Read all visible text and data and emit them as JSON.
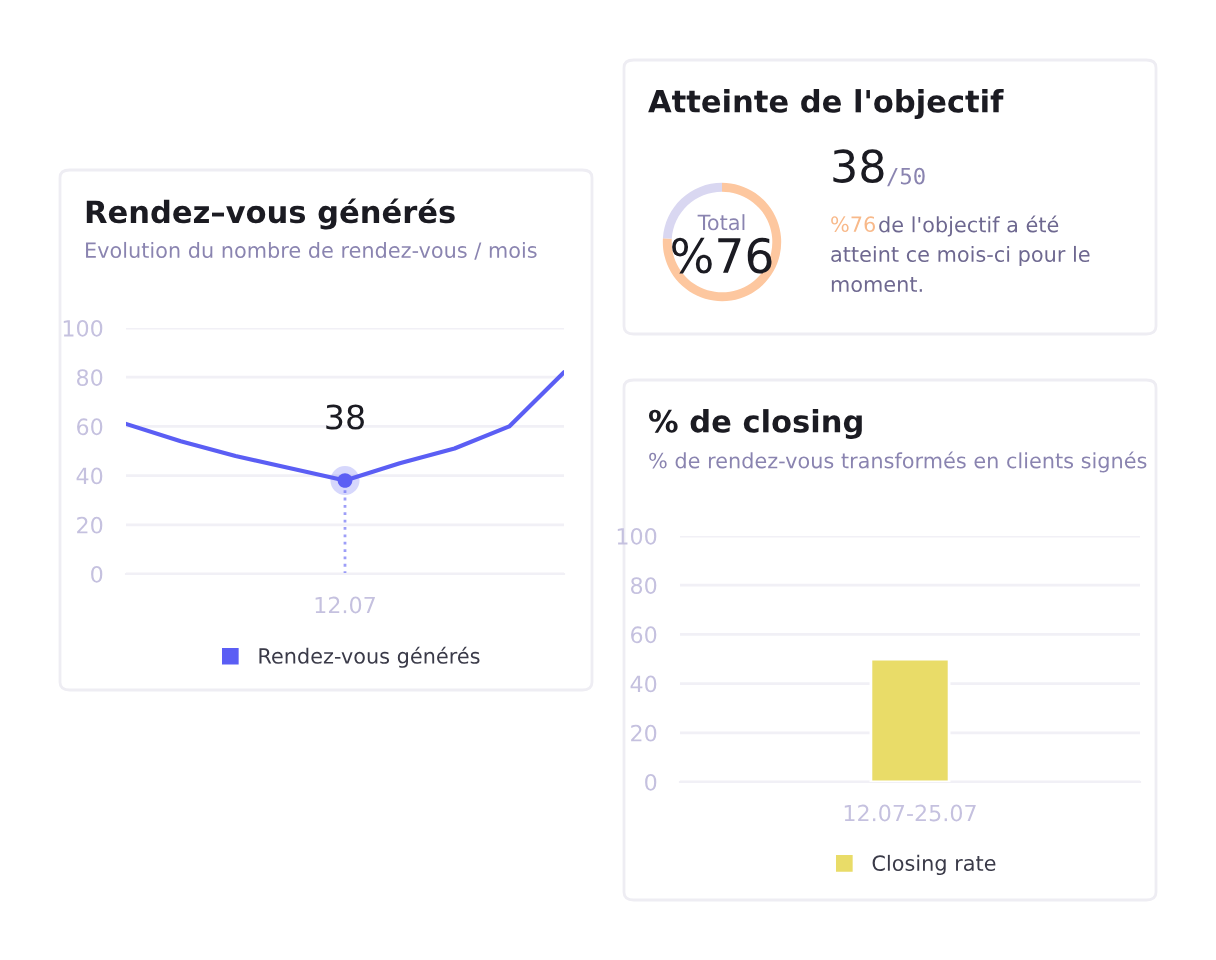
{
  "chart_data": [
    {
      "type": "line",
      "title": "Rendez–vous générés",
      "subtitle": "Evolution du nombre de rendez-vous / mois",
      "categories": [
        null,
        null,
        null,
        null,
        "12.07",
        null,
        null,
        null,
        null
      ],
      "series": [
        {
          "name": "Rendez-vous générés",
          "color": "#5b5ef4",
          "values": [
            61,
            54,
            48,
            43,
            38,
            45,
            51,
            60,
            82
          ]
        },
        {
          "type": "scatter",
          "color": "#5b5ef4",
          "x": [
            "12.07"
          ],
          "values": [
            38
          ],
          "value_labels": [
            "38"
          ]
        }
      ],
      "ylim": [
        0,
        100
      ],
      "yticks": [
        0,
        20,
        40,
        60,
        80,
        100
      ],
      "grid": "y",
      "legend": "bottom",
      "line_style": "solid"
    },
    {
      "type": "donut",
      "title": "Atteinte de l'objectif",
      "categories": [
        null,
        null
      ],
      "values": [
        76,
        24
      ],
      "colors": [
        "#fdc79f",
        "#d9d7f1"
      ],
      "annotations": [
        "Total",
        "%76",
        "38",
        "/50",
        "%76",
        "de l'objectif a été",
        "atteint ce mois-ci pour le",
        "moment."
      ]
    },
    {
      "type": "bar",
      "title": "% de closing",
      "subtitle": "% de rendez-vous transformés en clients signés",
      "categories": [
        "12.07-25.07"
      ],
      "series": [
        {
          "name": "Closing rate",
          "color": "#e9dc68",
          "values": [
            50
          ]
        }
      ],
      "ylim": [
        0,
        100
      ],
      "yticks": [
        0,
        20,
        40,
        60,
        80,
        100
      ],
      "grid": "y",
      "legend": "bottom"
    }
  ]
}
